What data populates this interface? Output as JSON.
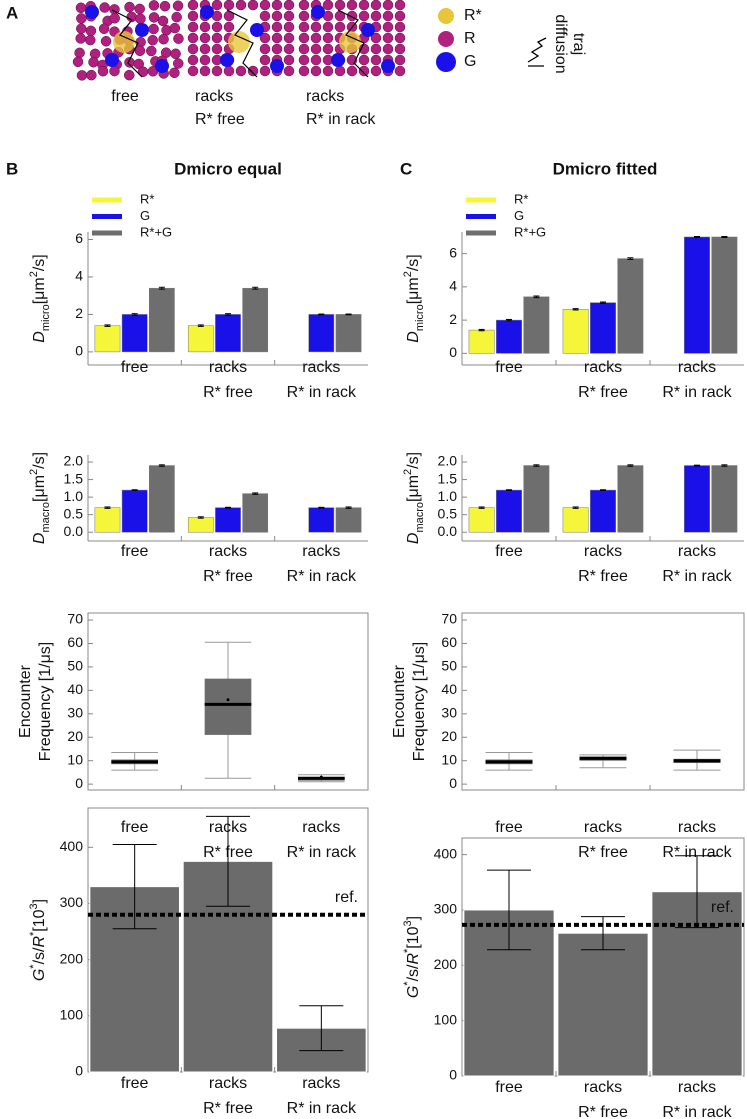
{
  "panel_a": {
    "label": "A",
    "images": [
      [
        "free"
      ],
      [
        "racks",
        "R* free"
      ],
      [
        "racks",
        "R* in rack"
      ]
    ],
    "legend": [
      "R*",
      "R",
      "G"
    ],
    "legend_colors": [
      "#e8c53a",
      "#b0207f",
      "#1a10e8"
    ],
    "traj_label": [
      "diffusion",
      "traj"
    ]
  },
  "panel_b": {
    "label": "B",
    "title": "Dmicro equal"
  },
  "panel_c": {
    "label": "C",
    "title": "Dmicro fitted"
  },
  "chart_data": [
    {
      "type": "grouped_bar",
      "legend": "top-left",
      "ylabel": [
        [
          {
            "text": "D",
            "style": "italic"
          },
          {
            "text": "micro",
            "shift": "sub"
          },
          "[μm",
          {
            "text": "2",
            "shift": "super"
          },
          "/s]"
        ]
      ],
      "categories": [
        [
          "free"
        ],
        [
          "racks",
          "R* free"
        ],
        [
          "racks",
          "R* in rack"
        ]
      ],
      "series": [
        {
          "name": "R*",
          "color": "#f5f53a",
          "values": [
            1.4,
            1.4,
            null
          ],
          "errors": [
            0.04,
            0.04,
            null
          ]
        },
        {
          "name": "G",
          "color": "#1a10e8",
          "values": [
            2.0,
            2.0,
            2.0
          ],
          "errors": [
            0.04,
            0.04,
            0.02
          ]
        },
        {
          "name": "R*+G",
          "color": "#6e6e6e",
          "values": [
            3.4,
            3.4,
            2.0
          ],
          "errors": [
            0.05,
            0.05,
            0.02
          ]
        }
      ],
      "ylim": [
        -0.7,
        6.4
      ],
      "yticks": [
        0,
        2,
        4,
        6
      ]
    },
    {
      "type": "grouped_bar",
      "ylabel": [
        [
          {
            "text": "D",
            "style": "italic"
          },
          {
            "text": "macro",
            "shift": "sub"
          },
          "[μm",
          {
            "text": "2",
            "shift": "super"
          },
          "/s]"
        ]
      ],
      "categories": [
        [
          "free"
        ],
        [
          "racks",
          "R* free"
        ],
        [
          "racks",
          "R* in rack"
        ]
      ],
      "series": [
        {
          "name": "R*",
          "color": "#f5f53a",
          "values": [
            0.7,
            0.42,
            null
          ],
          "errors": [
            0.02,
            0.02,
            null
          ]
        },
        {
          "name": "G",
          "color": "#1a10e8",
          "values": [
            1.2,
            0.7,
            0.7
          ],
          "errors": [
            0.01,
            0.01,
            0.01
          ]
        },
        {
          "name": "R*+G",
          "color": "#6e6e6e",
          "values": [
            1.9,
            1.1,
            0.7
          ],
          "errors": [
            0.02,
            0.02,
            0.02
          ]
        }
      ],
      "ylim": [
        -0.25,
        2.2
      ],
      "yticks": [
        {
          "value": 0,
          "label": "0.0"
        },
        {
          "value": 0.5,
          "label": "0.5"
        },
        {
          "value": 1,
          "label": "1.0"
        },
        {
          "value": 1.5,
          "label": "1.5"
        },
        {
          "value": 2,
          "label": "2.0"
        }
      ]
    },
    {
      "type": "box",
      "frame": true,
      "color": "#6b6b6b",
      "ylabel": [
        [
          "Encounter"
        ],
        [
          "Frequency [1/μs]"
        ]
      ],
      "categories": [
        [
          "free"
        ],
        [
          "racks",
          "R* free"
        ],
        [
          "racks",
          "R* in rack"
        ]
      ],
      "boxes": [
        {
          "min": 6,
          "q1": 8.5,
          "median": 9.5,
          "q3": 10.5,
          "max": 13.5,
          "mean": 9.5
        },
        {
          "min": 2.5,
          "q1": 21,
          "median": 34,
          "q3": 45,
          "max": 60.5,
          "mean": 36
        },
        {
          "min": 1,
          "q1": 1.5,
          "median": 2.5,
          "q3": 3,
          "max": 4,
          "mean": 3
        }
      ],
      "ylim": [
        -2.5,
        73
      ],
      "yticks": [
        0,
        10,
        20,
        30,
        40,
        50,
        60,
        70
      ]
    },
    {
      "type": "bar",
      "frame": true,
      "color": "#6b6b6b",
      "ylabel": [
        [
          {
            "text": "G",
            "style": "italic"
          },
          {
            "text": "*",
            "shift": "super"
          },
          "/s/",
          {
            "text": "R",
            "style": "italic"
          },
          {
            "text": "*",
            "shift": "super"
          },
          "[10",
          {
            "text": "3",
            "shift": "super"
          },
          "]"
        ]
      ],
      "categories": [
        [
          "free"
        ],
        [
          "racks",
          "R* free"
        ],
        [
          "racks",
          "R* in rack"
        ]
      ],
      "values": [
        330,
        375,
        78
      ],
      "errors": [
        75,
        80,
        40
      ],
      "reference": {
        "value": 280,
        "label": "ref."
      },
      "ylim": [
        0,
        470
      ],
      "yticks": [
        0,
        100,
        200,
        300,
        400
      ]
    },
    {
      "type": "grouped_bar",
      "legend": "top-left",
      "ylabel": [
        [
          {
            "text": "D",
            "style": "italic"
          },
          {
            "text": "micro",
            "shift": "sub"
          },
          "[μm",
          {
            "text": "2",
            "shift": "super"
          },
          "/s]"
        ]
      ],
      "categories": [
        [
          "free"
        ],
        [
          "racks",
          "R* free"
        ],
        [
          "racks",
          "R* in rack"
        ]
      ],
      "series": [
        {
          "name": "R*",
          "color": "#f5f53a",
          "values": [
            1.4,
            2.65,
            null
          ],
          "errors": [
            0.04,
            0.04,
            null
          ]
        },
        {
          "name": "G",
          "color": "#1a10e8",
          "values": [
            2.0,
            3.05,
            7.0
          ],
          "errors": [
            0.04,
            0.04,
            0.03
          ]
        },
        {
          "name": "R*+G",
          "color": "#6e6e6e",
          "values": [
            3.4,
            5.7,
            7.0
          ],
          "errors": [
            0.05,
            0.05,
            0.03
          ]
        }
      ],
      "ylim": [
        -0.7,
        7.3
      ],
      "yticks": [
        0,
        2,
        4,
        6
      ]
    },
    {
      "type": "grouped_bar",
      "ylabel": [
        [
          {
            "text": "D",
            "style": "italic"
          },
          {
            "text": "macro",
            "shift": "sub"
          },
          "[μm",
          {
            "text": "2",
            "shift": "super"
          },
          "/s]"
        ]
      ],
      "categories": [
        [
          "free"
        ],
        [
          "racks",
          "R* free"
        ],
        [
          "racks",
          "R* in rack"
        ]
      ],
      "series": [
        {
          "name": "R*",
          "color": "#f5f53a",
          "values": [
            0.7,
            0.7,
            null
          ],
          "errors": [
            0.02,
            0.02,
            null
          ]
        },
        {
          "name": "G",
          "color": "#1a10e8",
          "values": [
            1.2,
            1.2,
            1.9
          ],
          "errors": [
            0.01,
            0.01,
            0.01
          ]
        },
        {
          "name": "R*+G",
          "color": "#6e6e6e",
          "values": [
            1.9,
            1.9,
            1.9
          ],
          "errors": [
            0.02,
            0.02,
            0.02
          ]
        }
      ],
      "ylim": [
        -0.25,
        2.2
      ],
      "yticks": [
        {
          "value": 0,
          "label": "0.0"
        },
        {
          "value": 0.5,
          "label": "0.5"
        },
        {
          "value": 1,
          "label": "1.0"
        },
        {
          "value": 1.5,
          "label": "1.5"
        },
        {
          "value": 2,
          "label": "2.0"
        }
      ]
    },
    {
      "type": "box",
      "frame": true,
      "color": "#6b6b6b",
      "ylabel": [
        [
          "Encounter"
        ],
        [
          "Frequency [1/μs]"
        ]
      ],
      "categories": [
        [
          "free"
        ],
        [
          "racks",
          "R* free"
        ],
        [
          "racks",
          "R* in rack"
        ]
      ],
      "boxes": [
        {
          "min": 6,
          "q1": 8.5,
          "median": 9.5,
          "q3": 10.5,
          "max": 13.5,
          "mean": 9.5
        },
        {
          "min": 7,
          "q1": 10,
          "median": 11,
          "q3": 11.8,
          "max": 12.5,
          "mean": 11
        },
        {
          "min": 6,
          "q1": 9,
          "median": 10,
          "q3": 10.8,
          "max": 14.5,
          "mean": 10
        }
      ],
      "ylim": [
        -2.5,
        73
      ],
      "yticks": [
        0,
        10,
        20,
        30,
        40,
        50,
        60,
        70
      ]
    },
    {
      "type": "bar",
      "frame": true,
      "color": "#6b6b6b",
      "ylabel": [
        [
          {
            "text": "G",
            "style": "italic"
          },
          {
            "text": "*",
            "shift": "super"
          },
          "/s/",
          {
            "text": "R",
            "style": "italic"
          },
          {
            "text": "*",
            "shift": "super"
          },
          "[10",
          {
            "text": "3",
            "shift": "super"
          },
          "]"
        ]
      ],
      "categories": [
        [
          "free"
        ],
        [
          "racks",
          "R* free"
        ],
        [
          "racks",
          "R* in rack"
        ]
      ],
      "values": [
        300,
        258,
        333
      ],
      "errors": [
        72,
        30,
        65
      ],
      "reference": {
        "value": 273,
        "label": "ref."
      },
      "ylim": [
        0,
        430
      ],
      "yticks": [
        0,
        100,
        200,
        300,
        400
      ]
    }
  ]
}
